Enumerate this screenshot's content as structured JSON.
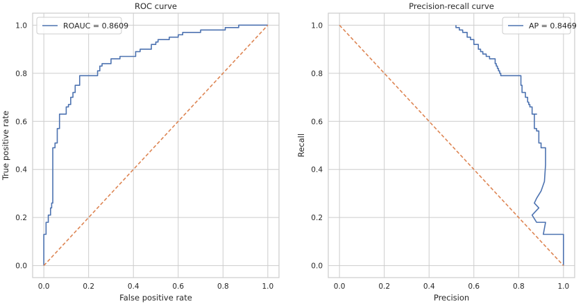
{
  "colors": {
    "series": "#4c72b0",
    "diagonal": "#dd8452",
    "grid": "#cccccc",
    "frame": "#cccccc",
    "text": "#262626"
  },
  "chart_data": [
    {
      "type": "line",
      "title": "ROC curve",
      "xlabel": "False positive rate",
      "ylabel": "True positive rate",
      "xlim": [
        -0.05,
        1.05
      ],
      "ylim": [
        -0.05,
        1.05
      ],
      "xticks": [
        "0.0",
        "0.2",
        "0.4",
        "0.6",
        "0.8",
        "1.0"
      ],
      "yticks": [
        "0.0",
        "0.2",
        "0.4",
        "0.6",
        "0.8",
        "1.0"
      ],
      "grid": true,
      "legend_position": "upper-left",
      "series": [
        {
          "name": "ROAUC = 0.8609",
          "style": "solid",
          "x": [
            0,
            0,
            0.01,
            0.01,
            0.02,
            0.02,
            0.03,
            0.03,
            0.035,
            0.035,
            0.04,
            0.04,
            0.05,
            0.05,
            0.06,
            0.06,
            0.07,
            0.07,
            0.1,
            0.1,
            0.11,
            0.11,
            0.12,
            0.12,
            0.13,
            0.13,
            0.14,
            0.14,
            0.15,
            0.15,
            0.16,
            0.16,
            0.24,
            0.24,
            0.25,
            0.25,
            0.26,
            0.26,
            0.27,
            0.27,
            0.3,
            0.3,
            0.34,
            0.34,
            0.35,
            0.35,
            0.41,
            0.41,
            0.43,
            0.43,
            0.48,
            0.48,
            0.5,
            0.5,
            0.51,
            0.51,
            0.53,
            0.53,
            0.56,
            0.56,
            0.6,
            0.6,
            0.62,
            0.62,
            0.66,
            0.66,
            0.7,
            0.7,
            0.81,
            0.81,
            0.87,
            0.87,
            1
          ],
          "y": [
            0,
            0.13,
            0.13,
            0.18,
            0.18,
            0.21,
            0.21,
            0.24,
            0.24,
            0.26,
            0.26,
            0.49,
            0.49,
            0.51,
            0.51,
            0.57,
            0.57,
            0.63,
            0.63,
            0.66,
            0.66,
            0.67,
            0.67,
            0.7,
            0.7,
            0.72,
            0.72,
            0.75,
            0.75,
            0.75,
            0.75,
            0.79,
            0.79,
            0.81,
            0.81,
            0.83,
            0.83,
            0.84,
            0.84,
            0.84,
            0.84,
            0.86,
            0.86,
            0.87,
            0.87,
            0.87,
            0.87,
            0.89,
            0.89,
            0.9,
            0.9,
            0.92,
            0.92,
            0.93,
            0.93,
            0.94,
            0.94,
            0.94,
            0.94,
            0.95,
            0.95,
            0.96,
            0.96,
            0.97,
            0.97,
            0.97,
            0.97,
            0.98,
            0.98,
            0.99,
            0.99,
            1.0,
            1.0
          ]
        },
        {
          "name": "",
          "style": "dashed",
          "x": [
            0,
            1
          ],
          "y": [
            0,
            1
          ]
        }
      ]
    },
    {
      "type": "line",
      "title": "Precision-recall curve",
      "xlabel": "Precision",
      "ylabel": "Recall",
      "xlim": [
        -0.05,
        1.05
      ],
      "ylim": [
        -0.05,
        1.05
      ],
      "xticks": [
        "0.0",
        "0.2",
        "0.4",
        "0.6",
        "0.8",
        "1.0"
      ],
      "yticks": [
        "0.0",
        "0.2",
        "0.4",
        "0.6",
        "0.8",
        "1.0"
      ],
      "grid": true,
      "legend_position": "upper-right",
      "series": [
        {
          "name": "AP = 0.8469",
          "style": "solid",
          "x": [
            0.52,
            0.52,
            0.535,
            0.535,
            0.55,
            0.55,
            0.57,
            0.57,
            0.585,
            0.585,
            0.6,
            0.6,
            0.615,
            0.615,
            0.62,
            0.62,
            0.63,
            0.63,
            0.64,
            0.64,
            0.655,
            0.655,
            0.67,
            0.67,
            0.695,
            0.695,
            0.7,
            0.7,
            0.705,
            0.705,
            0.71,
            0.71,
            0.715,
            0.715,
            0.72,
            0.72,
            0.725,
            0.725,
            0.73,
            0.73,
            0.81,
            0.81,
            0.815,
            0.815,
            0.83,
            0.83,
            0.84,
            0.84,
            0.845,
            0.845,
            0.85,
            0.85,
            0.86,
            0.86,
            0.88,
            0.88,
            0.87,
            0.87,
            0.88,
            0.88,
            0.89,
            0.89,
            0.9,
            0.9,
            0.92,
            0.92,
            0.915,
            0.9,
            0.88,
            0.87,
            0.87,
            0.89,
            0.89,
            0.86,
            0.86,
            0.88,
            0.88,
            0.92,
            0.92,
            0.91,
            0.91,
            0.95,
            0.95,
            1.0,
            1.0
          ],
          "y": [
            1.0,
            0.99,
            0.99,
            0.98,
            0.98,
            0.97,
            0.97,
            0.95,
            0.95,
            0.94,
            0.94,
            0.92,
            0.92,
            0.92,
            0.92,
            0.9,
            0.9,
            0.89,
            0.89,
            0.88,
            0.88,
            0.87,
            0.87,
            0.86,
            0.86,
            0.84,
            0.84,
            0.83,
            0.83,
            0.82,
            0.82,
            0.81,
            0.81,
            0.8,
            0.8,
            0.79,
            0.79,
            0.79,
            0.79,
            0.79,
            0.79,
            0.75,
            0.75,
            0.72,
            0.72,
            0.7,
            0.7,
            0.68,
            0.68,
            0.67,
            0.67,
            0.66,
            0.66,
            0.63,
            0.63,
            0.63,
            0.63,
            0.57,
            0.57,
            0.56,
            0.56,
            0.51,
            0.51,
            0.49,
            0.49,
            0.42,
            0.35,
            0.31,
            0.28,
            0.26,
            0.26,
            0.24,
            0.24,
            0.21,
            0.21,
            0.18,
            0.18,
            0.18,
            0.18,
            0.13,
            0.13,
            0.13,
            0.13,
            0.13,
            0.0
          ]
        },
        {
          "name": "",
          "style": "dashed",
          "x": [
            0,
            1
          ],
          "y": [
            1,
            0
          ]
        }
      ]
    }
  ]
}
